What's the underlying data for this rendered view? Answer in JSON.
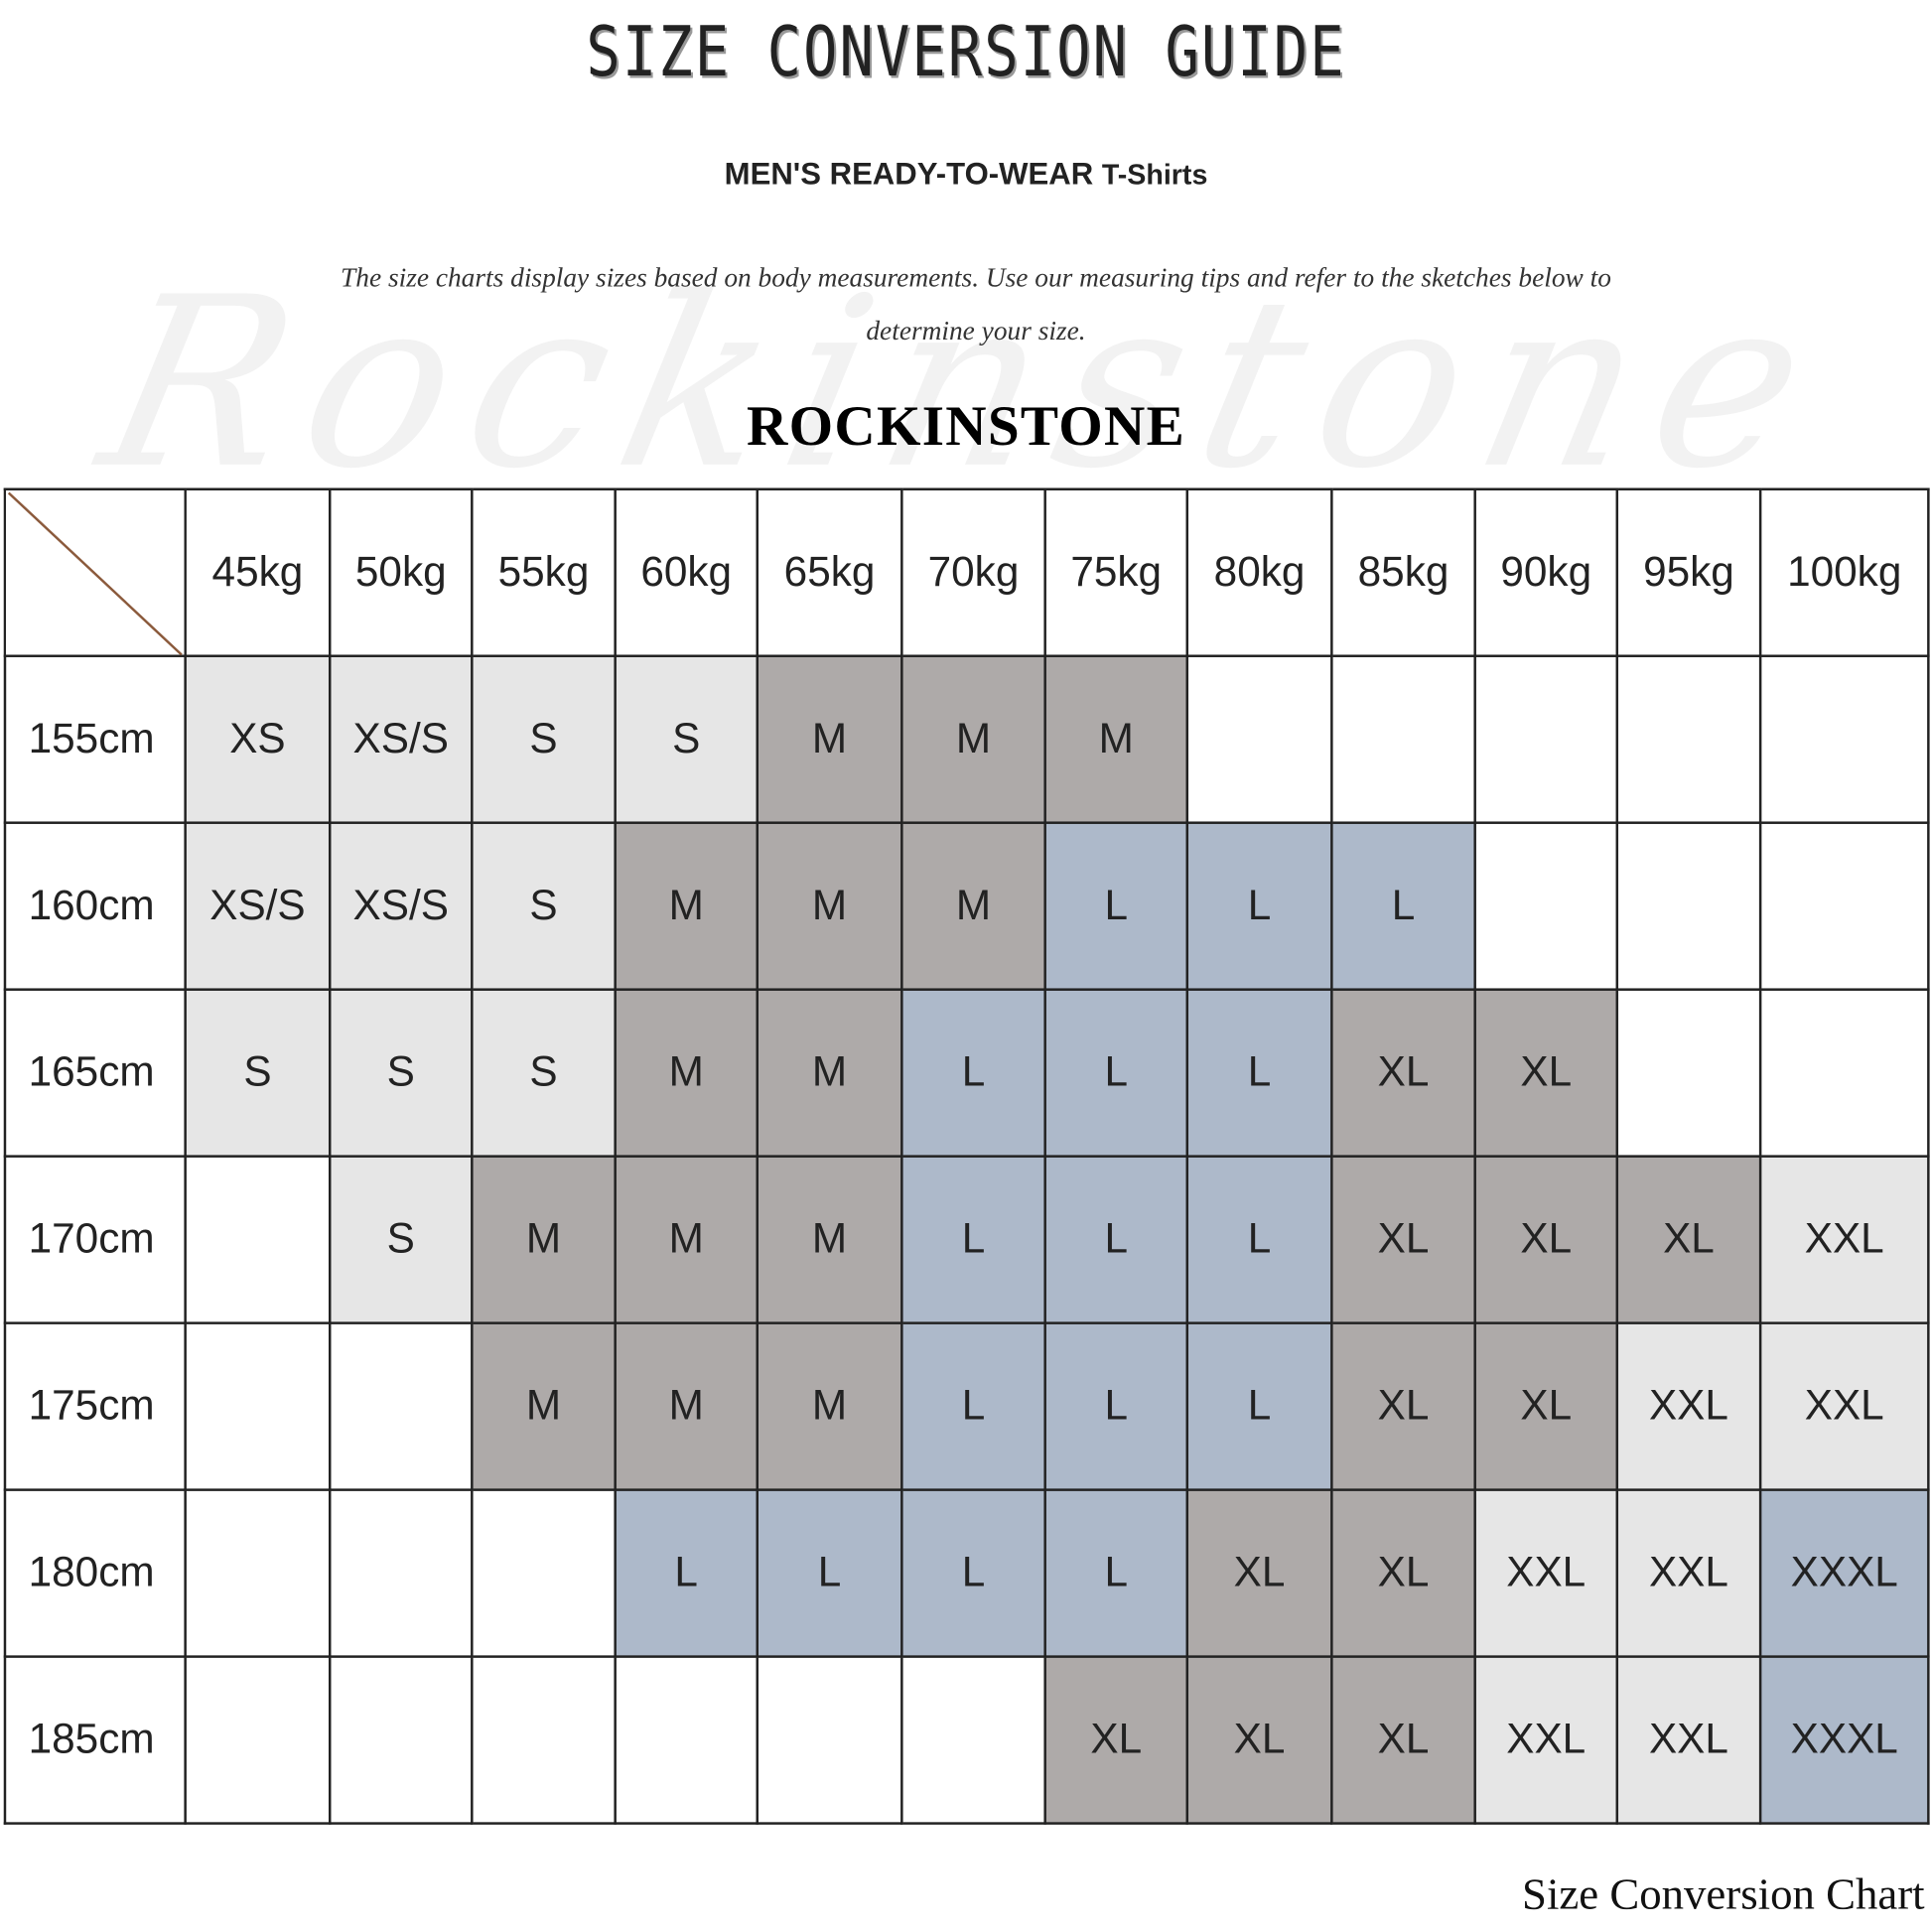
{
  "title": "SIZE CONVERSION GUIDE",
  "subtitle": {
    "main": "MEN'S READY-TO-WEAR",
    "product": "T-Shirts"
  },
  "intro": "The size charts display sizes based on body measurements. Use our measuring tips and refer to the sketches below to determine your size.",
  "watermark": "Rockinstone",
  "brand": "ROCKINSTONE",
  "footer": "Size Conversion Chart",
  "colors": {
    "l": "#e6e6e6",
    "d": "#aeaaa9",
    "b": "#adb9ca",
    "e": "#ffffff",
    "diagonal": "#8b5a3c"
  },
  "table": {
    "columns": [
      "45kg",
      "50kg",
      "55kg",
      "60kg",
      "65kg",
      "70kg",
      "75kg",
      "80kg",
      "85kg",
      "90kg",
      "95kg",
      "100kg"
    ],
    "rows": [
      {
        "height": "155cm",
        "cells": [
          [
            "XS",
            "l"
          ],
          [
            "XS/S",
            "l"
          ],
          [
            "S",
            "l"
          ],
          [
            "S",
            "l"
          ],
          [
            "M",
            "d"
          ],
          [
            "M",
            "d"
          ],
          [
            "M",
            "d"
          ],
          [
            "",
            "e"
          ],
          [
            "",
            "e"
          ],
          [
            "",
            "e"
          ],
          [
            "",
            "e"
          ],
          [
            "",
            "e"
          ]
        ]
      },
      {
        "height": "160cm",
        "cells": [
          [
            "XS/S",
            "l"
          ],
          [
            "XS/S",
            "l"
          ],
          [
            "S",
            "l"
          ],
          [
            "M",
            "d"
          ],
          [
            "M",
            "d"
          ],
          [
            "M",
            "d"
          ],
          [
            "L",
            "b"
          ],
          [
            "L",
            "b"
          ],
          [
            "L",
            "b"
          ],
          [
            "",
            "e"
          ],
          [
            "",
            "e"
          ],
          [
            "",
            "e"
          ]
        ]
      },
      {
        "height": "165cm",
        "cells": [
          [
            "S",
            "l"
          ],
          [
            "S",
            "l"
          ],
          [
            "S",
            "l"
          ],
          [
            "M",
            "d"
          ],
          [
            "M",
            "d"
          ],
          [
            "L",
            "b"
          ],
          [
            "L",
            "b"
          ],
          [
            "L",
            "b"
          ],
          [
            "XL",
            "d"
          ],
          [
            "XL",
            "d"
          ],
          [
            "",
            "e"
          ],
          [
            "",
            "e"
          ]
        ]
      },
      {
        "height": "170cm",
        "cells": [
          [
            "",
            "e"
          ],
          [
            "S",
            "l"
          ],
          [
            "M",
            "d"
          ],
          [
            "M",
            "d"
          ],
          [
            "M",
            "d"
          ],
          [
            "L",
            "b"
          ],
          [
            "L",
            "b"
          ],
          [
            "L",
            "b"
          ],
          [
            "XL",
            "d"
          ],
          [
            "XL",
            "d"
          ],
          [
            "XL",
            "d"
          ],
          [
            "XXL",
            "l"
          ]
        ]
      },
      {
        "height": "175cm",
        "cells": [
          [
            "",
            "e"
          ],
          [
            "",
            "e"
          ],
          [
            "M",
            "d"
          ],
          [
            "M",
            "d"
          ],
          [
            "M",
            "d"
          ],
          [
            "L",
            "b"
          ],
          [
            "L",
            "b"
          ],
          [
            "L",
            "b"
          ],
          [
            "XL",
            "d"
          ],
          [
            "XL",
            "d"
          ],
          [
            "XXL",
            "l"
          ],
          [
            "XXL",
            "l"
          ]
        ]
      },
      {
        "height": "180cm",
        "cells": [
          [
            "",
            "e"
          ],
          [
            "",
            "e"
          ],
          [
            "",
            "e"
          ],
          [
            "L",
            "b"
          ],
          [
            "L",
            "b"
          ],
          [
            "L",
            "b"
          ],
          [
            "L",
            "b"
          ],
          [
            "XL",
            "d"
          ],
          [
            "XL",
            "d"
          ],
          [
            "XXL",
            "l"
          ],
          [
            "XXL",
            "l"
          ],
          [
            "XXXL",
            "b"
          ]
        ]
      },
      {
        "height": "185cm",
        "cells": [
          [
            "",
            "e"
          ],
          [
            "",
            "e"
          ],
          [
            "",
            "e"
          ],
          [
            "",
            "e"
          ],
          [
            "",
            "e"
          ],
          [
            "",
            "e"
          ],
          [
            "XL",
            "d"
          ],
          [
            "XL",
            "d"
          ],
          [
            "XL",
            "d"
          ],
          [
            "XXL",
            "l"
          ],
          [
            "XXL",
            "l"
          ],
          [
            "XXXL",
            "b"
          ]
        ]
      }
    ]
  }
}
